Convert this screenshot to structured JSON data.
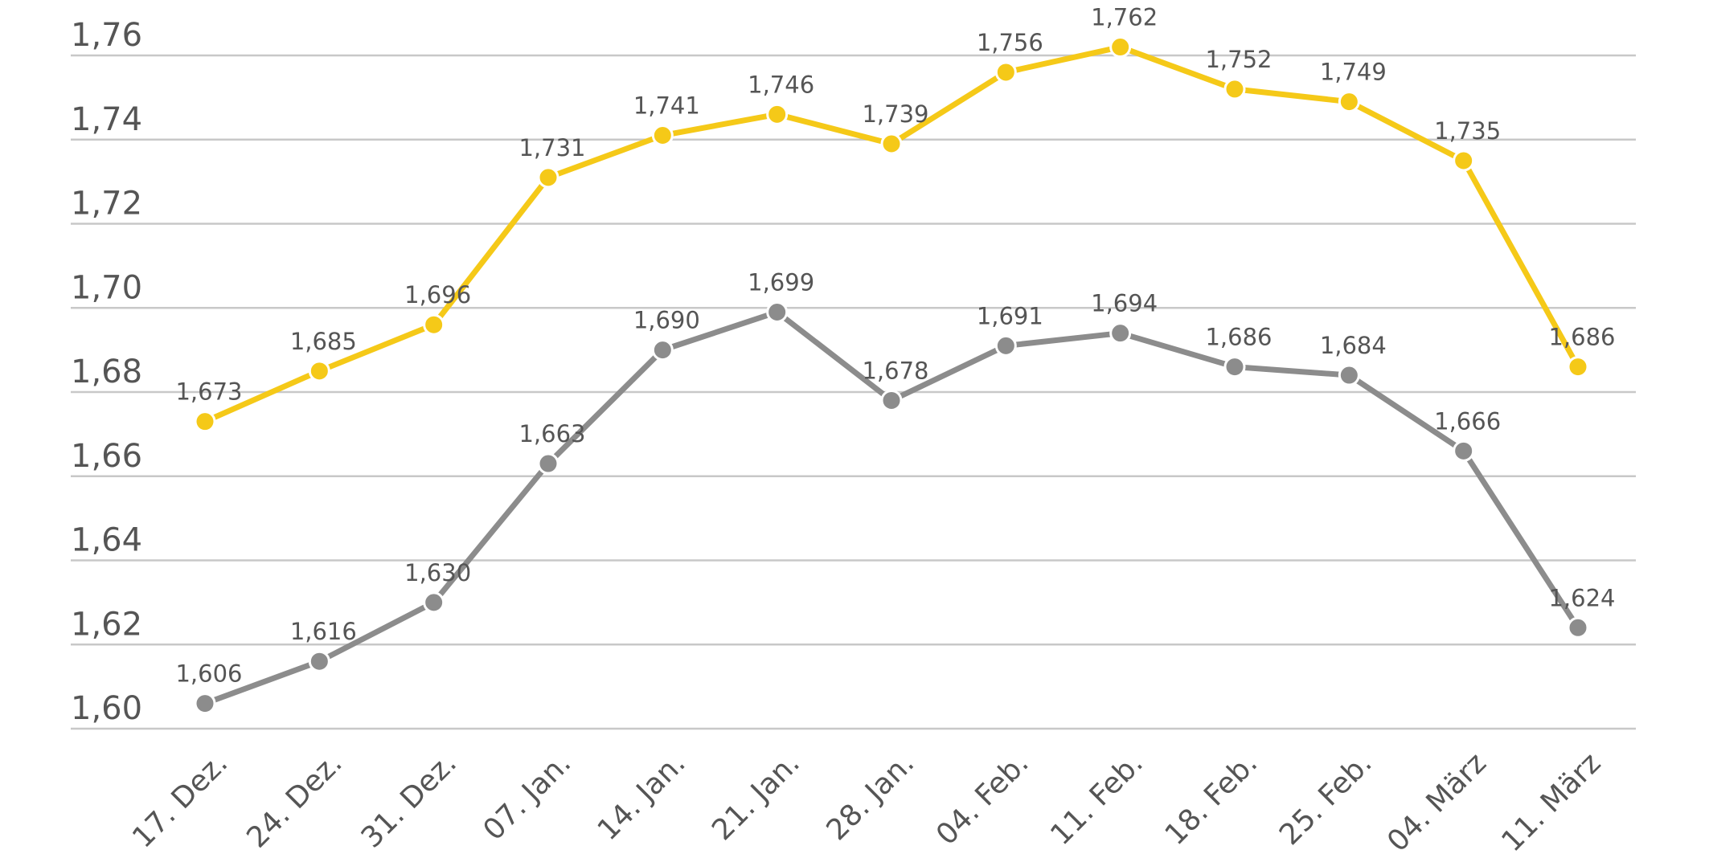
{
  "chart_data": {
    "type": "line",
    "title": "",
    "xlabel": "",
    "ylabel": "",
    "ylim": [
      1.6,
      1.76
    ],
    "grid": true,
    "yticks": [
      1.6,
      1.62,
      1.64,
      1.66,
      1.68,
      1.7,
      1.72,
      1.74,
      1.76
    ],
    "ytick_labels": [
      "1,60",
      "1,62",
      "1,64",
      "1,66",
      "1,68",
      "1,70",
      "1,72",
      "1,74",
      "1,76"
    ],
    "categories": [
      "17. Dez.",
      "24. Dez.",
      "31. Dez.",
      "07. Jan.",
      "14. Jan.",
      "21. Jan.",
      "28. Jan.",
      "04. Feb.",
      "11. Feb.",
      "18. Feb.",
      "25. Feb.",
      "04. März",
      "11. März"
    ],
    "series": [
      {
        "name": "yellow",
        "color": "#F5C918",
        "values": [
          1.673,
          1.685,
          1.696,
          1.731,
          1.741,
          1.746,
          1.739,
          1.756,
          1.762,
          1.752,
          1.749,
          1.735,
          1.686
        ],
        "labels": [
          "1,673",
          "1,685",
          "1,696",
          "1,731",
          "1,741",
          "1,746",
          "1,739",
          "1,756",
          "1,762",
          "1,752",
          "1,749",
          "1,735",
          "1,686"
        ]
      },
      {
        "name": "gray",
        "color": "#8C8C8C",
        "values": [
          1.606,
          1.616,
          1.63,
          1.663,
          1.69,
          1.699,
          1.678,
          1.691,
          1.694,
          1.686,
          1.684,
          1.666,
          1.624
        ],
        "labels": [
          "1,606",
          "1,616",
          "1,630",
          "1,663",
          "1,690",
          "1,699",
          "1,678",
          "1,691",
          "1,694",
          "1,686",
          "1,684",
          "1,666",
          "1,624"
        ]
      }
    ],
    "gridline_color": "#C8C8C8",
    "text_color": "#555555"
  }
}
